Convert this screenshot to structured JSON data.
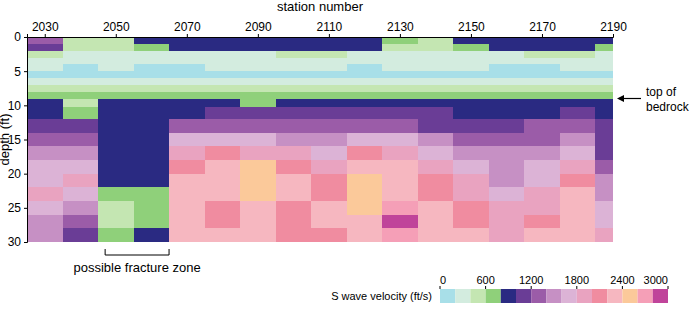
{
  "chart_data": {
    "type": "heatmap",
    "x_label": "station number",
    "y_label": "depth (ft)",
    "xlim": [
      2025,
      2190
    ],
    "xticks": [
      2030,
      2050,
      2070,
      2090,
      2110,
      2130,
      2150,
      2170,
      2190
    ],
    "ylim": [
      0,
      30
    ],
    "yticks": [
      0,
      5,
      10,
      15,
      20,
      25,
      30
    ],
    "x": [
      2030,
      2040,
      2050,
      2060,
      2070,
      2080,
      2090,
      2100,
      2110,
      2120,
      2130,
      2140,
      2150,
      2160,
      2170,
      2180,
      2190
    ],
    "y": [
      0.5,
      1.5,
      2.5,
      3.5,
      4.5,
      5.5,
      6.5,
      7.5,
      8.5,
      9.5,
      11,
      13,
      15,
      17,
      19,
      21,
      23,
      25,
      27,
      29
    ],
    "values": [
      [
        1300,
        500,
        500,
        900,
        900,
        900,
        900,
        900,
        900,
        900,
        700,
        500,
        900,
        900,
        900,
        900,
        900
      ],
      [
        1100,
        500,
        500,
        700,
        900,
        900,
        900,
        900,
        900,
        900,
        500,
        500,
        700,
        900,
        900,
        900,
        700
      ],
      [
        500,
        300,
        300,
        300,
        300,
        300,
        300,
        500,
        500,
        300,
        300,
        300,
        300,
        300,
        500,
        500,
        300
      ],
      [
        300,
        300,
        300,
        300,
        300,
        300,
        300,
        300,
        300,
        300,
        300,
        300,
        300,
        300,
        300,
        300,
        300
      ],
      [
        300,
        100,
        300,
        100,
        100,
        300,
        300,
        300,
        300,
        100,
        300,
        300,
        300,
        100,
        100,
        300,
        300
      ],
      [
        100,
        100,
        100,
        100,
        100,
        100,
        100,
        100,
        100,
        100,
        100,
        100,
        100,
        100,
        100,
        100,
        100
      ],
      [
        300,
        300,
        300,
        300,
        300,
        300,
        300,
        300,
        300,
        300,
        300,
        300,
        300,
        300,
        300,
        300,
        300
      ],
      [
        500,
        500,
        500,
        500,
        500,
        500,
        500,
        500,
        500,
        500,
        500,
        500,
        500,
        500,
        500,
        500,
        500
      ],
      [
        700,
        700,
        700,
        700,
        700,
        700,
        700,
        700,
        700,
        700,
        700,
        700,
        700,
        700,
        700,
        700,
        700
      ],
      [
        900,
        500,
        900,
        900,
        900,
        900,
        700,
        900,
        900,
        900,
        900,
        900,
        900,
        900,
        900,
        900,
        900
      ],
      [
        900,
        700,
        900,
        900,
        900,
        1100,
        1100,
        1100,
        1100,
        1100,
        1100,
        1100,
        900,
        900,
        900,
        1100,
        900
      ],
      [
        1100,
        1100,
        900,
        900,
        1300,
        1300,
        1300,
        1300,
        1300,
        1300,
        1300,
        1100,
        1100,
        1100,
        1300,
        1300,
        1100
      ],
      [
        1300,
        1300,
        900,
        900,
        1700,
        1700,
        1700,
        1500,
        1500,
        1700,
        1700,
        1500,
        1300,
        1300,
        1300,
        1500,
        1100
      ],
      [
        1500,
        1500,
        900,
        900,
        1900,
        2100,
        1900,
        1900,
        1700,
        2100,
        1900,
        1700,
        1500,
        1500,
        1500,
        1700,
        1100
      ],
      [
        1700,
        1700,
        900,
        900,
        2100,
        2300,
        2500,
        2100,
        1900,
        2300,
        2300,
        1900,
        1700,
        1500,
        1700,
        1900,
        1300
      ],
      [
        1700,
        1900,
        900,
        900,
        2300,
        2300,
        2500,
        2300,
        2100,
        2500,
        2300,
        2100,
        1900,
        1500,
        1700,
        2100,
        1500
      ],
      [
        1900,
        1700,
        700,
        700,
        2300,
        2300,
        2500,
        2300,
        2100,
        2500,
        2300,
        2100,
        1900,
        1700,
        1900,
        2300,
        1500
      ],
      [
        1700,
        1500,
        500,
        700,
        2300,
        2100,
        2300,
        2100,
        2300,
        2500,
        2700,
        2300,
        2100,
        1900,
        1900,
        2300,
        1700
      ],
      [
        1500,
        1300,
        500,
        700,
        2300,
        2100,
        2300,
        2100,
        2300,
        2300,
        2900,
        2300,
        2100,
        1900,
        2100,
        2300,
        1700
      ],
      [
        1500,
        1100,
        700,
        900,
        2300,
        2300,
        2300,
        2100,
        2100,
        2300,
        2700,
        2300,
        2300,
        1900,
        2300,
        2300,
        1900
      ]
    ],
    "colorbar": {
      "label": "S wave velocity (ft/s)",
      "range": [
        0,
        3000
      ],
      "ticks": [
        0,
        600,
        1200,
        1800,
        2400,
        3000
      ],
      "levels": [
        0,
        200,
        400,
        600,
        800,
        1000,
        1200,
        1400,
        1600,
        1800,
        2000,
        2200,
        2400,
        2600,
        2800,
        3000
      ]
    },
    "colors": [
      "#a8dfe8",
      "#d3ecdf",
      "#c4e6b2",
      "#8fd07a",
      "#2a2a82",
      "#6a3d96",
      "#9b5ca8",
      "#c690c4",
      "#dcb3d6",
      "#e9a3c0",
      "#f08ca0",
      "#f6b7c0",
      "#fbc99a",
      "#f59fb7",
      "#c0449a"
    ],
    "annotations": [
      {
        "text": "top of bedrock",
        "depth": 9
      },
      {
        "text": "possible fracture zone",
        "x": [
          2047,
          2065
        ]
      }
    ]
  }
}
